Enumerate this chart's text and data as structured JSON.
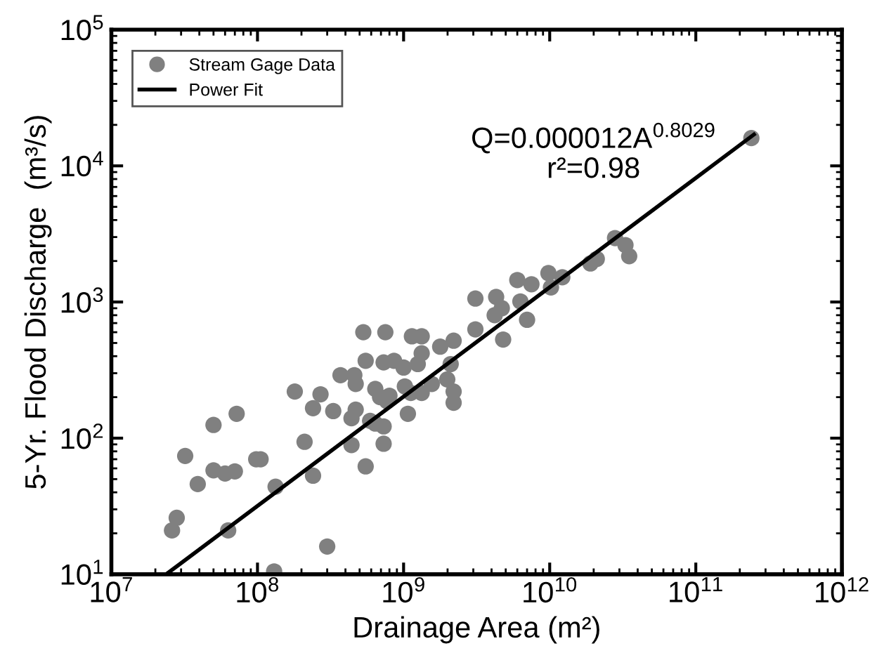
{
  "chart_data": {
    "type": "scatter",
    "xlabel": "Drainage Area (m²)",
    "ylabel": "5-Yr. Flood Discharge  (m³/s)",
    "log": "xy",
    "xlim": [
      10000000.0,
      1000000000000.0
    ],
    "ylim": [
      10,
      100000
    ],
    "xticks": [
      {
        "value": 10000000.0,
        "label": "10$^{7}$"
      },
      {
        "value": 100000000.0,
        "label": "10$^{8}$"
      },
      {
        "value": 1000000000.0,
        "label": "10$^{9}$"
      },
      {
        "value": 10000000000.0,
        "label": "10$^{10}$"
      },
      {
        "value": 100000000000.0,
        "label": "10$^{11}$"
      },
      {
        "value": 1000000000000.0,
        "label": "10$^{12}$"
      }
    ],
    "yticks": [
      {
        "value": 10,
        "label": "10$^{1}$"
      },
      {
        "value": 100,
        "label": "10$^{2}$"
      },
      {
        "value": 1000,
        "label": "10$^{3}$"
      },
      {
        "value": 10000,
        "label": "10$^{4}$"
      },
      {
        "value": 100000,
        "label": "10$^{5}$"
      }
    ],
    "grid": false,
    "legend": "top left",
    "annotations": [
      "Q=0.000012A$^{0.8029}$",
      "r²=0.98"
    ],
    "series": [
      {
        "name": "Stream Gage Data",
        "marker": "circle",
        "color": "#808080",
        "x": [
          180000000.0,
          270000000.0,
          370000000.0,
          550000000.0,
          730000000.0,
          860000000.0,
          470000000.0,
          640000000.0,
          800000000.0,
          240000000.0,
          330000000.0,
          470000000.0,
          440000000.0,
          1070000000.0,
          72000000.0,
          50000000.0,
          32000000.0,
          50000000.0,
          60000000.0,
          70000000.0,
          98000000.0,
          105000000.0,
          39000000.0,
          210000000.0,
          440000000.0,
          730000000.0,
          730000000.0,
          550000000.0,
          240000000.0,
          133000000.0,
          28000000.0,
          26000000.0,
          63000000.0,
          300000000.0,
          130000000.0,
          530000000.0,
          750000000.0,
          460000000.0,
          1000000000.0,
          1020000000.0,
          1140000000.0,
          1330000000.0,
          1330000000.0,
          1250000000.0,
          1560000000.0,
          1330000000.0,
          1120000000.0,
          690000000.0,
          770000000.0,
          590000000.0,
          640000000.0,
          1780000000.0,
          2200000000.0,
          2100000000.0,
          1990000000.0,
          2200000000.0,
          2200000000.0,
          3100000000.0,
          3100000000.0,
          4300000000.0,
          4700000000.0,
          4200000000.0,
          6300000000.0,
          7000000000.0,
          4800000000.0,
          6000000000.0,
          7500000000.0,
          9800000000.0,
          10200000000.0,
          12200000000.0,
          19000000000.0,
          21000000000.0,
          28000000000.0,
          33000000000.0,
          35000000000.0,
          240000000000.0
        ],
        "values": [
          220,
          210,
          290,
          370,
          360,
          370,
          250,
          230,
          205,
          166,
          158,
          162,
          140,
          151,
          151,
          125,
          74,
          58,
          55,
          57,
          70,
          70,
          46,
          94,
          89,
          91,
          122,
          62,
          53,
          44,
          26,
          21,
          21,
          16,
          10.5,
          600,
          600,
          290,
          330,
          240,
          560,
          560,
          420,
          350,
          250,
          215,
          215,
          200,
          187,
          134,
          128,
          470,
          520,
          350,
          270,
          220,
          182,
          1060,
          630,
          1090,
          900,
          800,
          1010,
          740,
          530,
          1450,
          1350,
          1630,
          1280,
          1520,
          1920,
          2070,
          2950,
          2620,
          2170,
          16000
        ]
      },
      {
        "name": "Power Fit",
        "type": "line",
        "marker": "none",
        "line_style": "solid",
        "color": "#000000",
        "x": [
          24000000.0,
          250000000000.0
        ],
        "values": [
          10.1,
          17000
        ]
      }
    ]
  }
}
